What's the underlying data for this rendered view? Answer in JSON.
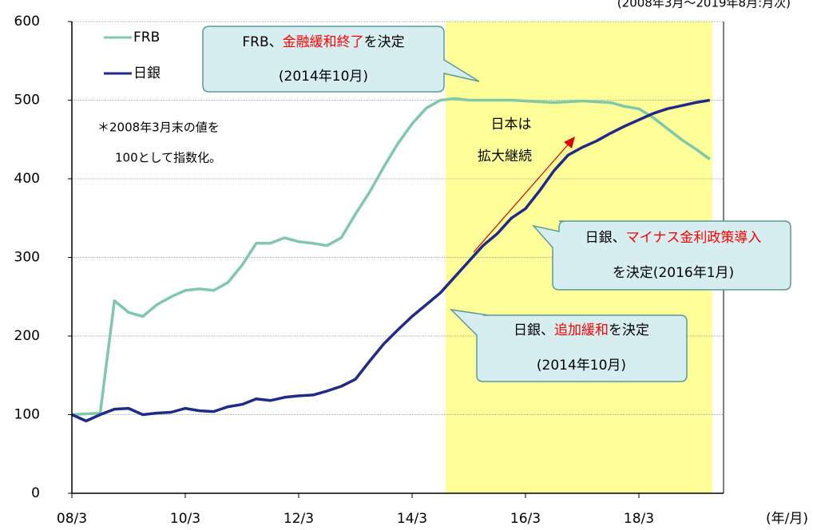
{
  "chart_data": {
    "type": "line",
    "subtitle": "(2008年3月～2019年8月:月次)",
    "x_label": "(年/月)",
    "categories": [
      "08/3",
      null,
      null,
      null,
      null,
      null,
      null,
      null,
      "10/3",
      null,
      null,
      null,
      null,
      null,
      null,
      null,
      "12/3",
      null,
      null,
      null,
      null,
      null,
      null,
      null,
      "14/3",
      null,
      null,
      null,
      null,
      null,
      null,
      null,
      "16/3",
      null,
      null,
      null,
      null,
      null,
      null,
      null,
      "18/3",
      null,
      null,
      null,
      null,
      null
    ],
    "series": [
      {
        "name": "FRB",
        "color": "#7fc8a9",
        "values": [
          100,
          101,
          102,
          245,
          230,
          225,
          240,
          250,
          258,
          260,
          258,
          268,
          290,
          318,
          318,
          325,
          320,
          318,
          315,
          325,
          355,
          383,
          415,
          445,
          470,
          490,
          500,
          502,
          500,
          500,
          500,
          500,
          499,
          498,
          497,
          498,
          499,
          498,
          497,
          492,
          489,
          478,
          464,
          450,
          438,
          425
        ]
      },
      {
        "name": "日銀",
        "color": "#1f2a8a",
        "values": [
          100,
          92,
          100,
          107,
          108,
          100,
          102,
          103,
          108,
          105,
          104,
          110,
          113,
          120,
          118,
          122,
          124,
          125,
          130,
          136,
          145,
          168,
          190,
          208,
          225,
          240,
          255,
          275,
          295,
          315,
          330,
          350,
          362,
          385,
          410,
          430,
          440,
          448,
          458,
          467,
          475,
          483,
          489,
          493,
          497,
          500
        ]
      }
    ],
    "ylim": [
      0,
      600
    ],
    "yticks": [
      0,
      100,
      200,
      300,
      400,
      500,
      600
    ],
    "grid": true,
    "legend": "upper left",
    "note": [
      "＊2008年3月末の値を",
      "100として指数化。"
    ],
    "shaded_label": [
      "日本は",
      "拡大継続"
    ],
    "annotations": [
      {
        "line1": [
          "FRB、",
          "金融緩和終了",
          "を決定"
        ],
        "line2": "(2014年10月)"
      },
      {
        "line1": [
          "日銀、",
          "マイナス金利政策導入"
        ],
        "line2": "を決定(2016年1月)"
      },
      {
        "line1": [
          "日銀、",
          "追加緩和",
          "を決定"
        ],
        "line2": "(2014年10月)"
      }
    ]
  }
}
